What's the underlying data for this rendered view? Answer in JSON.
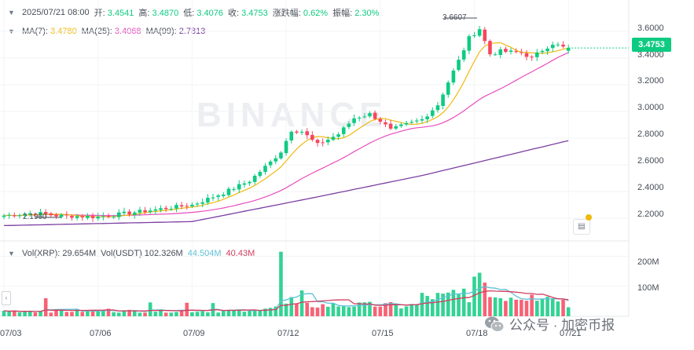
{
  "header": {
    "datetime": "2025/07/21 08:00",
    "open_label": "开:",
    "open": "3.4541",
    "high_label": "高:",
    "high": "3.4870",
    "low_label": "低:",
    "low": "3.4076",
    "close_label": "收:",
    "close": "3.4753",
    "change_label": "涨跌幅:",
    "change": "0.62%",
    "amplitude_label": "振幅:",
    "amplitude": "2.30%"
  },
  "ma_legend": {
    "ma7_label": "MA(7):",
    "ma7": "3.4780",
    "ma25_label": "MA(25):",
    "ma25": "3.4068",
    "ma99_label": "MA(99):",
    "ma99": "2.7813"
  },
  "vol_legend": {
    "xrp_label": "Vol(XRP):",
    "xrp": "29.654M",
    "usdt_label": "Vol(USDT)",
    "usdt": "102.326M",
    "ma1": "44.504M",
    "ma2": "40.43M"
  },
  "current_price": "3.4753",
  "high_marker": "3.6607",
  "low_marker": "2.1960",
  "watermark": "BINANCE",
  "footer": {
    "wechat": "公众号 · 加密币报"
  },
  "colors": {
    "up": "#0ecb81",
    "down": "#f6465d",
    "ma7": "#f0b90b",
    "ma25": "#e84cbd",
    "ma99": "#7b3fa0",
    "vol_ma1": "#5ec2d6",
    "vol_ma2": "#d23c5e"
  },
  "icons": [
    "chevron-down-icon",
    "chevron-left-icon",
    "indicator-icon",
    "wechat-icon"
  ],
  "chart_data": {
    "type": "candlestick",
    "price_ticks": [
      "3.6000",
      "3.4000",
      "3.2000",
      "3.0000",
      "2.8000",
      "2.6000",
      "2.4000",
      "2.2000"
    ],
    "price_tick_values": [
      3.6,
      3.4,
      3.2,
      3.0,
      2.8,
      2.6,
      2.4,
      2.2
    ],
    "price_range": [
      2.13,
      3.67
    ],
    "volume_ticks": [
      "200M",
      "100M"
    ],
    "volume_tick_values": [
      200,
      100
    ],
    "volume_range": [
      0,
      230
    ],
    "x_ticks": [
      "07/03",
      "07/06",
      "07/09",
      "07/12",
      "07/15",
      "07/18",
      "07/21"
    ],
    "x_tick_index": [
      0,
      18,
      36,
      54,
      72,
      90,
      108
    ],
    "anchors": [
      [
        0,
        2.22
      ],
      [
        6,
        2.24
      ],
      [
        10,
        2.22
      ],
      [
        18,
        2.21
      ],
      [
        22,
        2.23
      ],
      [
        28,
        2.26
      ],
      [
        36,
        2.3
      ],
      [
        42,
        2.39
      ],
      [
        47,
        2.48
      ],
      [
        51,
        2.62
      ],
      [
        53,
        2.7
      ],
      [
        55,
        2.86
      ],
      [
        57,
        2.85
      ],
      [
        60,
        2.75
      ],
      [
        64,
        2.83
      ],
      [
        67,
        2.95
      ],
      [
        70,
        2.98
      ],
      [
        72,
        2.93
      ],
      [
        74,
        2.86
      ],
      [
        76,
        2.89
      ],
      [
        80,
        2.94
      ],
      [
        83,
        3.05
      ],
      [
        85,
        3.22
      ],
      [
        87,
        3.38
      ],
      [
        89,
        3.55
      ],
      [
        91,
        3.62
      ],
      [
        93,
        3.43
      ],
      [
        95,
        3.45
      ],
      [
        99,
        3.44
      ],
      [
        101,
        3.4
      ],
      [
        103,
        3.46
      ],
      [
        105,
        3.51
      ],
      [
        107,
        3.48
      ],
      [
        108,
        3.475
      ]
    ],
    "ma99_anchors": [
      [
        0,
        2.145
      ],
      [
        36,
        2.175
      ],
      [
        60,
        2.36
      ],
      [
        80,
        2.52
      ],
      [
        108,
        2.781
      ]
    ],
    "vol_spikes": [
      [
        8,
        60
      ],
      [
        20,
        25
      ],
      [
        28,
        46
      ],
      [
        35,
        45
      ],
      [
        40,
        44
      ],
      [
        53,
        215
      ],
      [
        55,
        64
      ],
      [
        57,
        86
      ],
      [
        70,
        48
      ],
      [
        76,
        26
      ],
      [
        86,
        88
      ],
      [
        88,
        92
      ],
      [
        90,
        132
      ],
      [
        91,
        145
      ],
      [
        92,
        112
      ],
      [
        97,
        62
      ],
      [
        101,
        72
      ],
      [
        107,
        55
      ],
      [
        108,
        30
      ]
    ]
  }
}
